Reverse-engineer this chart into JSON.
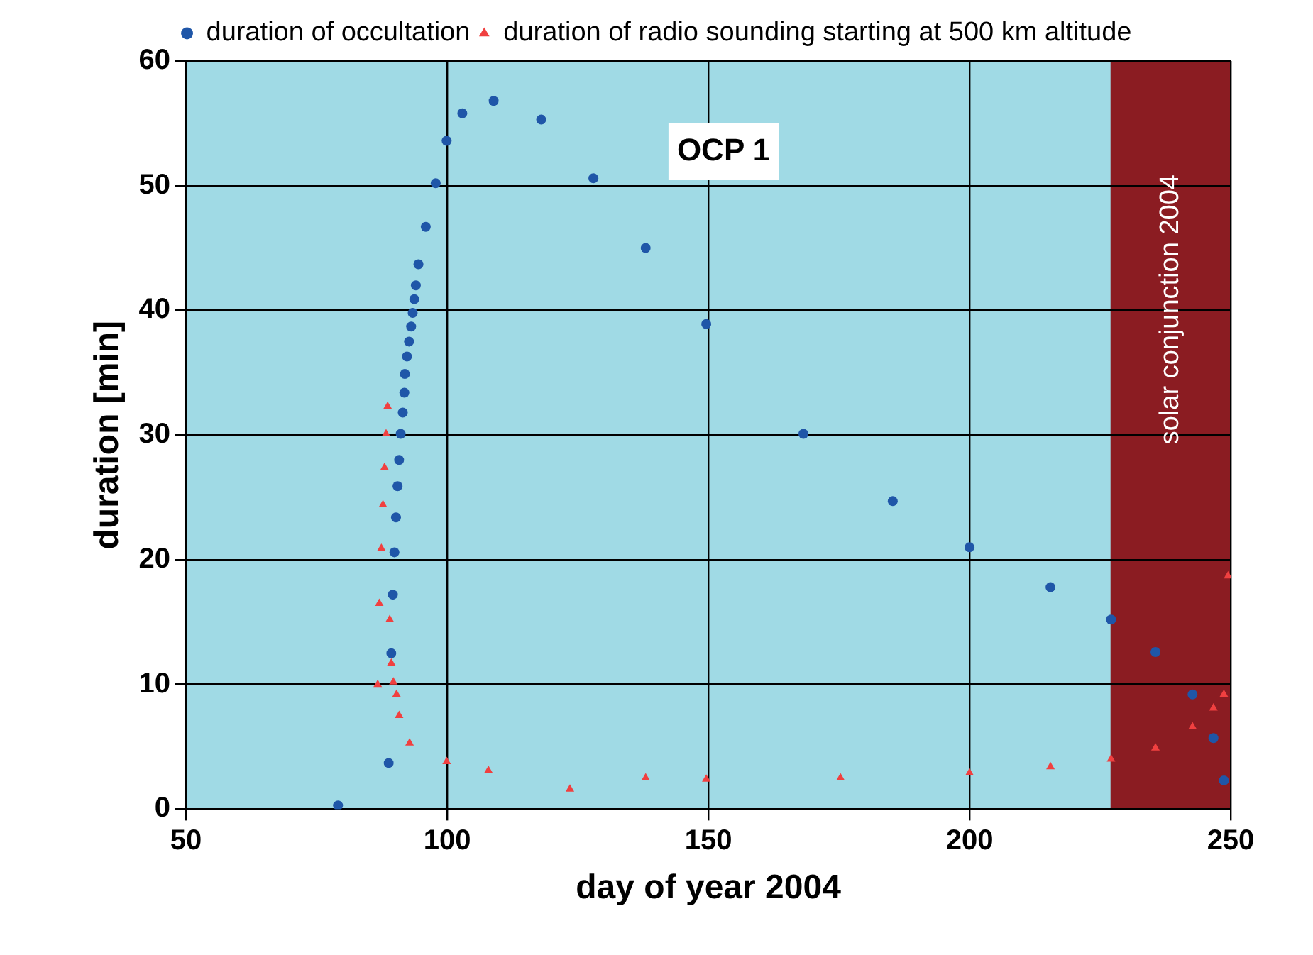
{
  "chart_data": {
    "type": "scatter",
    "xlabel": "day of year 2004",
    "ylabel": "duration [min]",
    "xlim": [
      50,
      250
    ],
    "xticks": [
      50,
      100,
      150,
      200,
      250
    ],
    "ylim": [
      0,
      60
    ],
    "yticks": [
      0,
      10,
      20,
      30,
      40,
      50,
      60
    ],
    "grid": true,
    "legend": "top",
    "annotations": [
      "OCP 1"
    ],
    "bands": [
      {
        "axis": "x",
        "from": 227,
        "to": 250,
        "label": "solar conjunction 2004",
        "color": "#8b1c22"
      }
    ],
    "series": [
      {
        "name": "duration of occultation",
        "color": "#1f56a8",
        "marker": "circle",
        "x": [
          79.1,
          88.8,
          89.3,
          89.6,
          89.9,
          90.2,
          90.5,
          90.8,
          91.1,
          91.5,
          91.8,
          91.9,
          92.3,
          92.7,
          93.1,
          93.4,
          93.7,
          94.0,
          94.5,
          95.9,
          97.8,
          99.9,
          102.9,
          108.9,
          118,
          128,
          138,
          149.6,
          168.2,
          185.3,
          200,
          215.5,
          227.1,
          235.6,
          242.7,
          246.7,
          248.7
        ],
        "values": [
          0.3,
          3.7,
          12.5,
          17.2,
          20.6,
          23.4,
          25.9,
          28,
          30.1,
          31.8,
          33.4,
          34.9,
          36.3,
          37.5,
          38.7,
          39.8,
          40.9,
          42.0,
          43.7,
          46.7,
          50.2,
          53.6,
          55.8,
          56.8,
          55.3,
          50.6,
          45,
          38.9,
          30.1,
          24.7,
          21.0,
          17.8,
          15.2,
          12.6,
          9.2,
          5.7,
          2.3
        ]
      },
      {
        "name": "duration of radio sounding starting at 500 km altitude",
        "color": "#f04040",
        "marker": "triangle",
        "x": [
          88.6,
          88.3,
          88.0,
          87.7,
          87.4,
          87.0,
          89.0,
          89.3,
          86.7,
          89.7,
          90.3,
          90.8,
          92.8,
          99.9,
          107.9,
          123.5,
          138,
          149.6,
          175.3,
          200,
          215.5,
          227.1,
          235.6,
          242.7,
          246.7,
          248.7,
          249.5
        ],
        "values": [
          32.3,
          30.1,
          27.4,
          24.4,
          20.9,
          16.5,
          15.2,
          11.7,
          10.0,
          10.2,
          9.2,
          7.5,
          5.3,
          3.8,
          3.1,
          1.6,
          2.5,
          2.4,
          2.5,
          2.9,
          3.4,
          4.0,
          4.9,
          6.6,
          8.1,
          9.2,
          18.7
        ]
      }
    ]
  }
}
